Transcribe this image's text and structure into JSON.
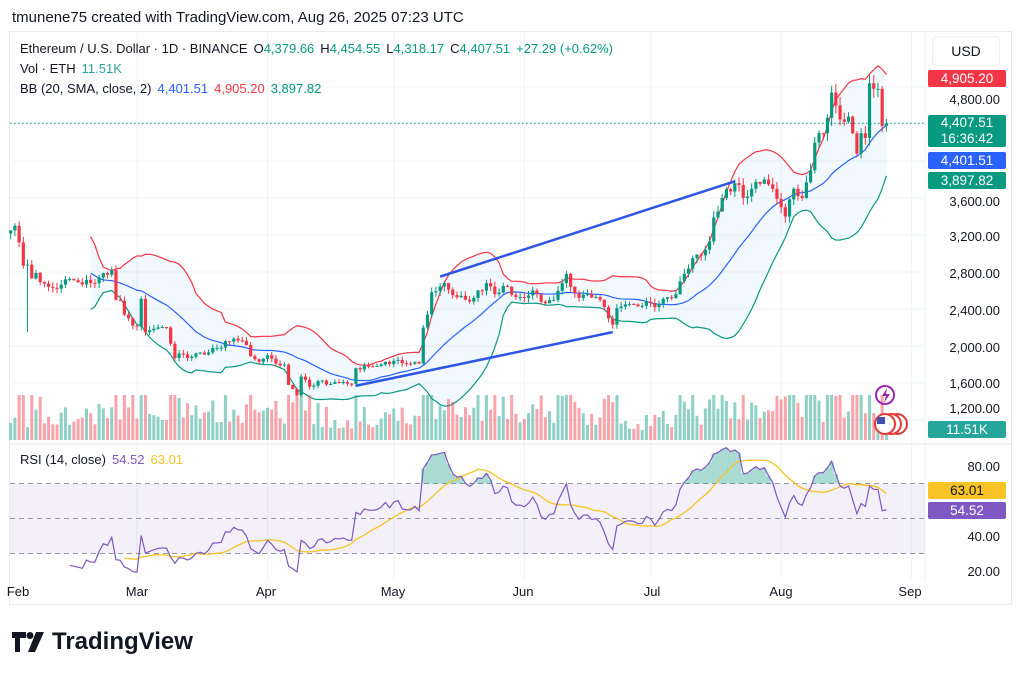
{
  "header": {
    "credit": "tmunene75 created with TradingView.com, Aug 26, 2025 07:23 UTC"
  },
  "legend": {
    "symbol": "Ethereum / U.S. Dollar · 1D · BINANCE",
    "o_label": "O",
    "o": "4,379.66",
    "h_label": "H",
    "h": "4,454.55",
    "l_label": "L",
    "l": "4,318.17",
    "c_label": "C",
    "c": "4,407.51",
    "change": "+27.29 (+0.62%)",
    "vol_label": "Vol · ETH",
    "vol": "11.51K",
    "bb_label": "BB (20, SMA, close, 2)",
    "bb_basis": "4,401.51",
    "bb_upper": "4,905.20",
    "bb_lower": "3,897.82",
    "rsi_label": "RSI (14, close)",
    "rsi": "54.52",
    "rsi_ma": "63.01"
  },
  "axis": {
    "currency_button": "USD",
    "price_ticks": [
      "4,800.00",
      "3,600.00",
      "3,200.00",
      "2,800.00",
      "2,400.00",
      "2,000.00",
      "1,600.00",
      "1,200.00"
    ],
    "rsi_ticks": [
      "80.00",
      "40.00",
      "20.00"
    ],
    "tags": {
      "upper": "4,905.20",
      "last": "4,407.51",
      "countdown": "16:36:42",
      "basis": "4,401.51",
      "lower": "3,897.82",
      "volume": "11.51K",
      "rsi_ma": "63.01",
      "rsi": "54.52"
    },
    "months": [
      "Feb",
      "Mar",
      "Apr",
      "May",
      "Jun",
      "Jul",
      "Aug",
      "Sep"
    ]
  },
  "colors": {
    "up": "#089981",
    "down": "#f23645",
    "bb_basis": "#2962ff",
    "bb_upper": "#f23645",
    "bb_lower": "#089981",
    "rsi": "#7e57c2",
    "rsi_ma": "#f7c325",
    "trendline": "#2f55e4"
  },
  "icons": [
    "lightning-icon",
    "us-flag-icon"
  ],
  "brand": "TradingView",
  "chart_data": {
    "type": "candlestick",
    "symbol": "ETHUSD",
    "interval": "1D",
    "price_ylim": [
      1100,
      5000
    ],
    "rsi_ylim": [
      15,
      95
    ],
    "rsi_bands": [
      30,
      50,
      70
    ],
    "grid": true,
    "last_candle": {
      "date": "2025-08-26",
      "open": 4379.66,
      "high": 4454.55,
      "low": 4318.17,
      "close": 4407.51
    },
    "closes": [
      [
        "2025-01-30",
        3250
      ],
      [
        "2025-01-31",
        3300
      ],
      [
        "2025-02-01",
        3120
      ],
      [
        "2025-02-02",
        2870
      ],
      [
        "2025-02-03",
        2880
      ],
      [
        "2025-02-04",
        2730
      ],
      [
        "2025-02-05",
        2790
      ],
      [
        "2025-02-06",
        2690
      ],
      [
        "2025-02-08",
        2640
      ],
      [
        "2025-02-10",
        2620
      ],
      [
        "2025-02-12",
        2720
      ],
      [
        "2025-02-15",
        2690
      ],
      [
        "2025-02-18",
        2680
      ],
      [
        "2025-02-20",
        2740
      ],
      [
        "2025-02-22",
        2770
      ],
      [
        "2025-02-23",
        2820
      ],
      [
        "2025-02-24",
        2500
      ],
      [
        "2025-02-25",
        2490
      ],
      [
        "2025-02-26",
        2340
      ],
      [
        "2025-02-27",
        2300
      ],
      [
        "2025-02-28",
        2220
      ],
      [
        "2025-03-01",
        2210
      ],
      [
        "2025-03-02",
        2510
      ],
      [
        "2025-03-03",
        2150
      ],
      [
        "2025-03-04",
        2170
      ],
      [
        "2025-03-06",
        2200
      ],
      [
        "2025-03-08",
        2200
      ],
      [
        "2025-03-10",
        1870
      ],
      [
        "2025-03-11",
        1920
      ],
      [
        "2025-03-13",
        1870
      ],
      [
        "2025-03-15",
        1920
      ],
      [
        "2025-03-18",
        1930
      ],
      [
        "2025-03-20",
        1980
      ],
      [
        "2025-03-24",
        2080
      ],
      [
        "2025-03-25",
        2060
      ],
      [
        "2025-03-27",
        2010
      ],
      [
        "2025-03-28",
        1890
      ],
      [
        "2025-03-30",
        1830
      ],
      [
        "2025-04-01",
        1900
      ],
      [
        "2025-04-03",
        1810
      ],
      [
        "2025-04-05",
        1800
      ],
      [
        "2025-04-06",
        1580
      ],
      [
        "2025-04-08",
        1470
      ],
      [
        "2025-04-09",
        1670
      ],
      [
        "2025-04-11",
        1560
      ],
      [
        "2025-04-13",
        1620
      ],
      [
        "2025-04-16",
        1590
      ],
      [
        "2025-04-19",
        1610
      ],
      [
        "2025-04-21",
        1590
      ],
      [
        "2025-04-22",
        1760
      ],
      [
        "2025-04-25",
        1780
      ],
      [
        "2025-04-28",
        1800
      ],
      [
        "2025-05-01",
        1840
      ],
      [
        "2025-05-04",
        1810
      ],
      [
        "2025-05-07",
        1810
      ],
      [
        "2025-05-08",
        2200
      ],
      [
        "2025-05-09",
        2340
      ],
      [
        "2025-05-10",
        2580
      ],
      [
        "2025-05-13",
        2680
      ],
      [
        "2025-05-14",
        2610
      ],
      [
        "2025-05-15",
        2550
      ],
      [
        "2025-05-18",
        2500
      ],
      [
        "2025-05-20",
        2520
      ],
      [
        "2025-05-23",
        2680
      ],
      [
        "2025-05-25",
        2560
      ],
      [
        "2025-05-27",
        2650
      ],
      [
        "2025-05-30",
        2530
      ],
      [
        "2025-06-01",
        2520
      ],
      [
        "2025-06-03",
        2600
      ],
      [
        "2025-06-05",
        2480
      ],
      [
        "2025-06-08",
        2500
      ],
      [
        "2025-06-10",
        2680
      ],
      [
        "2025-06-11",
        2780
      ],
      [
        "2025-06-12",
        2640
      ],
      [
        "2025-06-14",
        2520
      ],
      [
        "2025-06-16",
        2560
      ],
      [
        "2025-06-18",
        2530
      ],
      [
        "2025-06-20",
        2420
      ],
      [
        "2025-06-22",
        2230
      ],
      [
        "2025-06-23",
        2410
      ],
      [
        "2025-06-25",
        2450
      ],
      [
        "2025-06-28",
        2430
      ],
      [
        "2025-06-30",
        2480
      ],
      [
        "2025-07-02",
        2420
      ],
      [
        "2025-07-04",
        2510
      ],
      [
        "2025-07-07",
        2560
      ],
      [
        "2025-07-09",
        2780
      ],
      [
        "2025-07-11",
        2950
      ],
      [
        "2025-07-13",
        2980
      ],
      [
        "2025-07-15",
        3130
      ],
      [
        "2025-07-16",
        3390
      ],
      [
        "2025-07-18",
        3600
      ],
      [
        "2025-07-21",
        3760
      ],
      [
        "2025-07-22",
        3740
      ],
      [
        "2025-07-23",
        3600
      ],
      [
        "2025-07-25",
        3700
      ],
      [
        "2025-07-28",
        3800
      ],
      [
        "2025-07-30",
        3700
      ],
      [
        "2025-08-01",
        3500
      ],
      [
        "2025-08-02",
        3400
      ],
      [
        "2025-08-04",
        3700
      ],
      [
        "2025-08-06",
        3600
      ],
      [
        "2025-08-08",
        3900
      ],
      [
        "2025-08-09",
        4200
      ],
      [
        "2025-08-11",
        4300
      ],
      [
        "2025-08-13",
        4740
      ],
      [
        "2025-08-14",
        4600
      ],
      [
        "2025-08-15",
        4450
      ],
      [
        "2025-08-17",
        4480
      ],
      [
        "2025-08-18",
        4300
      ],
      [
        "2025-08-19",
        4080
      ],
      [
        "2025-08-20",
        4300
      ],
      [
        "2025-08-21",
        4250
      ],
      [
        "2025-08-22",
        4840
      ],
      [
        "2025-08-23",
        4780
      ],
      [
        "2025-08-24",
        4780
      ],
      [
        "2025-08-25",
        4380
      ],
      [
        "2025-08-26",
        4407.51
      ]
    ],
    "indicators": [
      "Bollinger Bands (20, SMA, close, 2)",
      "Volume",
      "RSI (14, close) with MA"
    ],
    "drawings": [
      {
        "type": "trendline",
        "from": [
          "2025-05-12",
          2750
        ],
        "to": [
          "2025-07-21",
          3780
        ]
      },
      {
        "type": "trendline",
        "from": [
          "2025-04-22",
          1570
        ],
        "to": [
          "2025-06-22",
          2150
        ]
      }
    ]
  }
}
